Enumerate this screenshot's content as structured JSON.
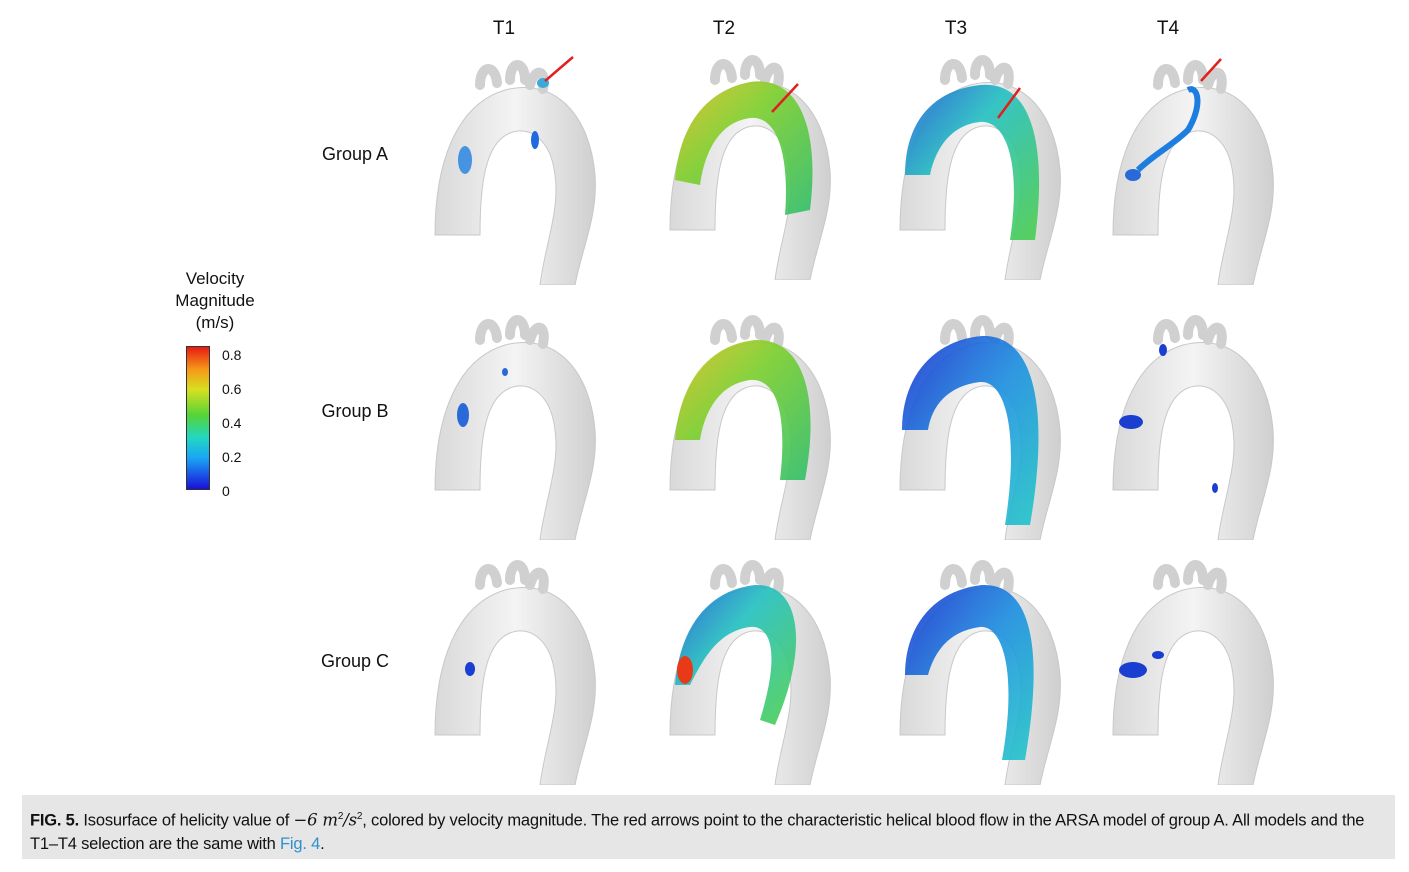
{
  "columns": [
    "T1",
    "T2",
    "T3",
    "T4"
  ],
  "rows": [
    "Group A",
    "Group B",
    "Group C"
  ],
  "legend": {
    "title_lines": [
      "Velocity",
      "Magnitude",
      "(m/s)"
    ],
    "ticks": [
      "0.8",
      "0.6",
      "0.4",
      "0.2",
      "0"
    ]
  },
  "caption": {
    "label": "FIG. 5.",
    "part1": " Isosurface of helicity value of ",
    "math_value": "−6 m",
    "sup1": "2",
    "math_unit": "/s",
    "sup2": "2",
    "part2": ", colored by velocity magnitude. The red arrows point to the characteristic helical blood flow in the ARSA model of group A. All models and the T1–T4 selection are the same with ",
    "ref": "Fig. 4",
    "end": "."
  }
}
